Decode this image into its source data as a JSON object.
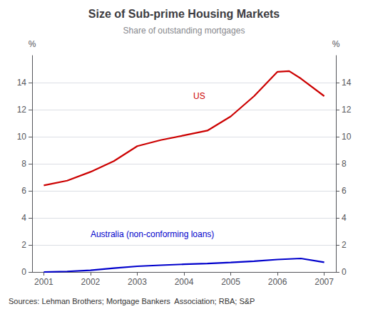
{
  "chart_data": {
    "type": "line",
    "title": "Size of Sub-prime Housing Markets",
    "subtitle": "Share of outstanding mortgages",
    "source": "Sources: Lehman Brothers; Mortgage Bankers  Association; RBA; S&P",
    "ylabel": "%",
    "y2label": "%",
    "xlim": [
      2000.75,
      2007.25
    ],
    "xticks": [
      2001,
      2002,
      2003,
      2004,
      2005,
      2006,
      2007
    ],
    "ylim": [
      0,
      16
    ],
    "yticks": [
      0,
      2,
      4,
      6,
      8,
      10,
      12,
      14
    ],
    "y2lim": [
      0,
      16
    ],
    "y2ticks": [
      0,
      2,
      4,
      6,
      8,
      10,
      12,
      14
    ],
    "grid": true,
    "series": [
      {
        "color": "#cc0000",
        "x": [
          2001,
          2001.5,
          2002,
          2002.5,
          2003,
          2003.5,
          2004,
          2004.5,
          2005,
          2005.5,
          2006,
          2006.25,
          2006.5,
          2007
        ],
        "values": [
          6.4,
          6.75,
          7.4,
          8.2,
          9.3,
          9.75,
          10.1,
          10.45,
          11.5,
          13.0,
          14.8,
          14.85,
          14.3,
          13.0
        ]
      },
      {
        "color": "#0000cc",
        "x": [
          2001,
          2001.5,
          2002,
          2002.5,
          2003,
          2003.5,
          2004,
          2004.5,
          2005,
          2005.5,
          2006,
          2006.5,
          2007
        ],
        "values": [
          0.0,
          0.04,
          0.13,
          0.28,
          0.42,
          0.5,
          0.57,
          0.63,
          0.7,
          0.8,
          0.92,
          1.0,
          0.72
        ]
      }
    ],
    "annotations": [
      {
        "text": "US",
        "x": 2004.2,
        "y": 13.0,
        "color": "#cc0000"
      },
      {
        "text": "Australia (non-conforming loans)",
        "x": 2002.0,
        "y": 2.8,
        "color": "#0000cc"
      }
    ]
  }
}
